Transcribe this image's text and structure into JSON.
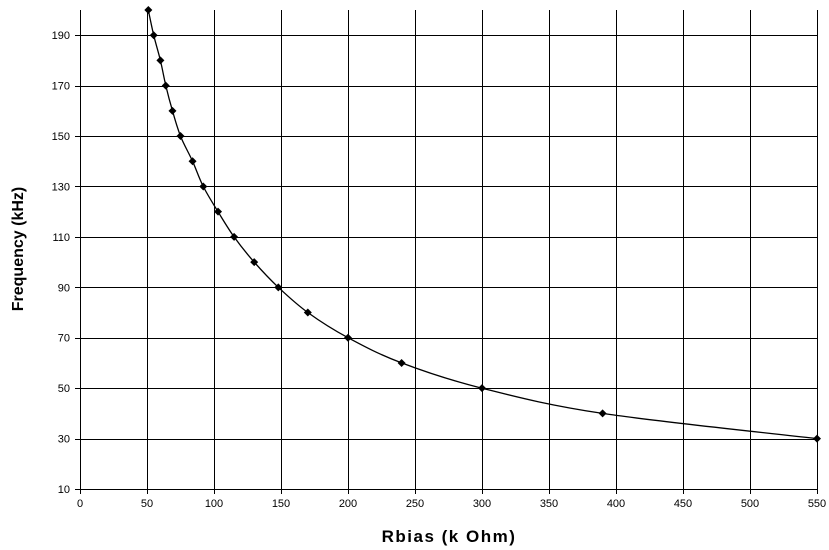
{
  "chart_data": {
    "type": "scatter",
    "title": "",
    "xlabel": "Rbias (k Ohm)",
    "ylabel": "Frequency (kHz)",
    "xlim": [
      0,
      550
    ],
    "ylim": [
      10,
      200
    ],
    "xticks": [
      0,
      50,
      100,
      150,
      200,
      250,
      300,
      350,
      400,
      450,
      500,
      550
    ],
    "yticks": [
      10,
      30,
      50,
      70,
      90,
      110,
      130,
      150,
      170,
      190
    ],
    "grid": true,
    "series_color": "#000000",
    "series": [
      {
        "x": [
          51,
          55,
          60,
          64,
          69,
          75,
          84,
          92,
          103,
          115,
          130,
          148,
          170,
          200,
          240,
          300,
          390,
          550
        ],
        "y": [
          200,
          190,
          180,
          170,
          160,
          150,
          140,
          130,
          120,
          110,
          100,
          90,
          80,
          70,
          60,
          50,
          40,
          30
        ]
      }
    ]
  }
}
